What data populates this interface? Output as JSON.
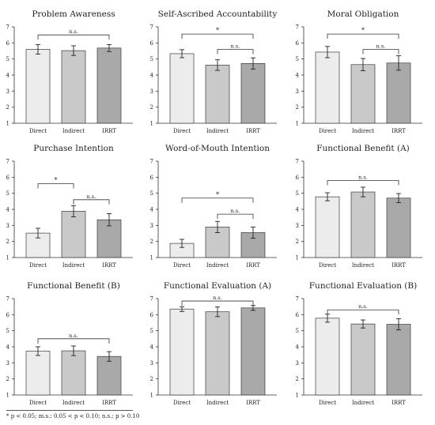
{
  "style": {
    "bar_colors": [
      "#ececec",
      "#c9c9c9",
      "#a9a9a9"
    ],
    "bar_stroke": "#3a3a3a",
    "axis_color": "#333333",
    "bracket_color": "#333333"
  },
  "footnote": "* p < 0.05; m.s.: 0.05 < p < 0.10; n.s.: p > 0.10",
  "chart_data": [
    {
      "type": "bar",
      "title": "Problem Awareness",
      "categories": [
        "Direct",
        "Indirect",
        "IRRT"
      ],
      "values": [
        5.6,
        5.52,
        5.68
      ],
      "errors": [
        0.3,
        0.3,
        0.22
      ],
      "ylim": [
        1,
        7
      ],
      "yticks": [
        1,
        2,
        3,
        4,
        5,
        6,
        7
      ],
      "xlabel": "",
      "ylabel": "",
      "legend": "none",
      "annotations": [
        {
          "from": 0,
          "to": 2,
          "label": "n.s.",
          "level": 6.5
        }
      ]
    },
    {
      "type": "bar",
      "title": "Self-Ascribed Accountability",
      "categories": [
        "Direct",
        "Indirect",
        "IRRT"
      ],
      "values": [
        5.33,
        4.62,
        4.72
      ],
      "errors": [
        0.25,
        0.33,
        0.35
      ],
      "ylim": [
        1,
        7
      ],
      "yticks": [
        1,
        2,
        3,
        4,
        5,
        6,
        7
      ],
      "xlabel": "",
      "ylabel": "",
      "legend": "none",
      "annotations": [
        {
          "from": 0,
          "to": 2,
          "label": "*",
          "level": 6.55
        },
        {
          "from": 1,
          "to": 2,
          "label": "n.s.",
          "level": 5.6
        }
      ]
    },
    {
      "type": "bar",
      "title": "Moral Obligation",
      "categories": [
        "Direct",
        "Indirect",
        "IRRT"
      ],
      "values": [
        5.43,
        4.65,
        4.75
      ],
      "errors": [
        0.35,
        0.38,
        0.45
      ],
      "ylim": [
        1,
        7
      ],
      "yticks": [
        1,
        2,
        3,
        4,
        5,
        6,
        7
      ],
      "xlabel": "",
      "ylabel": "",
      "legend": "none",
      "annotations": [
        {
          "from": 0,
          "to": 2,
          "label": "*",
          "level": 6.55
        },
        {
          "from": 1,
          "to": 2,
          "label": "n.s.",
          "level": 5.6
        }
      ]
    },
    {
      "type": "bar",
      "title": "Purchase Intention",
      "categories": [
        "Direct",
        "Indirect",
        "IRRT"
      ],
      "values": [
        2.52,
        3.88,
        3.35
      ],
      "errors": [
        0.3,
        0.35,
        0.38
      ],
      "ylim": [
        1,
        7
      ],
      "yticks": [
        1,
        2,
        3,
        4,
        5,
        6,
        7
      ],
      "xlabel": "",
      "ylabel": "",
      "legend": "none",
      "annotations": [
        {
          "from": 0,
          "to": 1,
          "label": "*",
          "level": 5.6
        },
        {
          "from": 1,
          "to": 2,
          "label": "n.s.",
          "level": 4.6
        }
      ]
    },
    {
      "type": "bar",
      "title": "Word-of-Mouth Intention",
      "categories": [
        "Direct",
        "Indirect",
        "IRRT"
      ],
      "values": [
        1.88,
        2.9,
        2.55
      ],
      "errors": [
        0.25,
        0.35,
        0.35
      ],
      "ylim": [
        1,
        7
      ],
      "yticks": [
        1,
        2,
        3,
        4,
        5,
        6,
        7
      ],
      "xlabel": "",
      "ylabel": "",
      "legend": "none",
      "annotations": [
        {
          "from": 0,
          "to": 2,
          "label": "*",
          "level": 4.7
        },
        {
          "from": 1,
          "to": 2,
          "label": "n.s.",
          "level": 3.7
        }
      ]
    },
    {
      "type": "bar",
      "title": "Functional Benefit (A)",
      "categories": [
        "Direct",
        "Indirect",
        "IRRT"
      ],
      "values": [
        4.78,
        5.08,
        4.7
      ],
      "errors": [
        0.25,
        0.3,
        0.28
      ],
      "ylim": [
        1,
        7
      ],
      "yticks": [
        1,
        2,
        3,
        4,
        5,
        6,
        7
      ],
      "xlabel": "",
      "ylabel": "",
      "legend": "none",
      "annotations": [
        {
          "from": 0,
          "to": 2,
          "label": "n.s.",
          "level": 5.8
        }
      ]
    },
    {
      "type": "bar",
      "title": "Functional Benefit (B)",
      "categories": [
        "Direct",
        "Indirect",
        "IRRT"
      ],
      "values": [
        3.73,
        3.75,
        3.4
      ],
      "errors": [
        0.27,
        0.3,
        0.3
      ],
      "ylim": [
        1,
        7
      ],
      "yticks": [
        1,
        2,
        3,
        4,
        5,
        6,
        7
      ],
      "xlabel": "",
      "ylabel": "",
      "legend": "none",
      "annotations": [
        {
          "from": 0,
          "to": 2,
          "label": "n.s.",
          "level": 4.5
        }
      ]
    },
    {
      "type": "bar",
      "title": "Functional Evaluation (A)",
      "categories": [
        "Direct",
        "Indirect",
        "IRRT"
      ],
      "values": [
        6.35,
        6.18,
        6.42
      ],
      "errors": [
        0.15,
        0.3,
        0.15
      ],
      "ylim": [
        1,
        7
      ],
      "yticks": [
        1,
        2,
        3,
        4,
        5,
        6,
        7
      ],
      "xlabel": "",
      "ylabel": "",
      "legend": "none",
      "annotations": [
        {
          "from": 0,
          "to": 2,
          "label": "n.s.",
          "level": 6.85
        }
      ]
    },
    {
      "type": "bar",
      "title": "Functional Evaluation (B)",
      "categories": [
        "Direct",
        "Indirect",
        "IRRT"
      ],
      "values": [
        5.78,
        5.42,
        5.4
      ],
      "errors": [
        0.25,
        0.25,
        0.35
      ],
      "ylim": [
        1,
        7
      ],
      "yticks": [
        1,
        2,
        3,
        4,
        5,
        6,
        7
      ],
      "xlabel": "",
      "ylabel": "",
      "legend": "none",
      "annotations": [
        {
          "from": 0,
          "to": 2,
          "label": "n.s.",
          "level": 6.3
        }
      ]
    }
  ]
}
